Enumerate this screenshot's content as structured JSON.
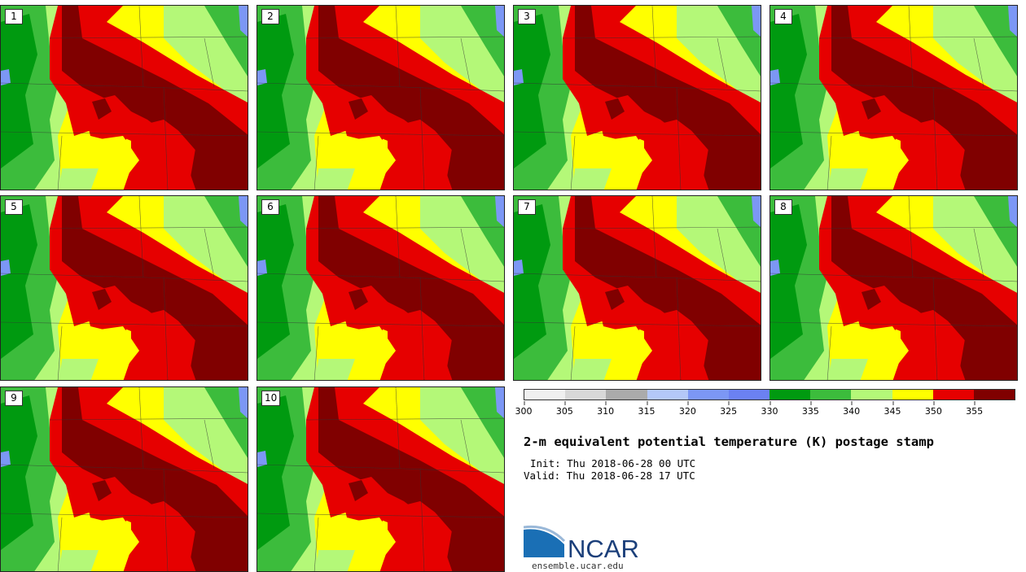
{
  "panels": [
    {
      "label": "1"
    },
    {
      "label": "2"
    },
    {
      "label": "3"
    },
    {
      "label": "4"
    },
    {
      "label": "5"
    },
    {
      "label": "6"
    },
    {
      "label": "7"
    },
    {
      "label": "8"
    },
    {
      "label": "9"
    },
    {
      "label": "10"
    }
  ],
  "colorbar": {
    "colors": [
      "#f0f0f0",
      "#d8d8d8",
      "#ababab",
      "#b4c8f8",
      "#7c97f5",
      "#6b81f2",
      "#009a10",
      "#3cbc3c",
      "#b4f878",
      "#ffff00",
      "#e60000",
      "#800000"
    ],
    "ticks": [
      "300",
      "305",
      "310",
      "315",
      "320",
      "325",
      "330",
      "335",
      "340",
      "345",
      "350",
      "355"
    ]
  },
  "title": "2-m equivalent potential temperature (K) postage stamp",
  "init": "Init: Thu 2018-06-28 00 UTC",
  "valid": "Valid: Thu 2018-06-28 17 UTC",
  "logo_text": "NCAR",
  "url": "ensemble.ucar.edu"
}
